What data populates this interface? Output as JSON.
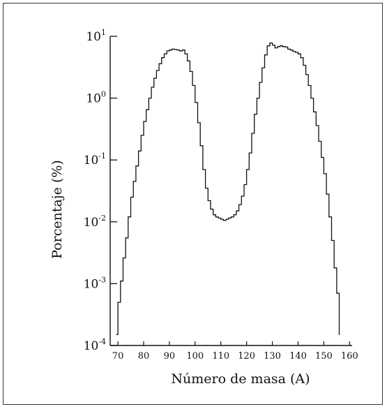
{
  "chart_data": {
    "type": "line",
    "title": "",
    "xlabel": "Número de masa (A)",
    "ylabel": "Porcentaje (%)",
    "yscale": "log",
    "xlim": [
      67,
      161
    ],
    "ylim": [
      0.0001,
      10
    ],
    "grid": false,
    "x_ticks": [
      70,
      80,
      90,
      100,
      110,
      120,
      130,
      140,
      150,
      160
    ],
    "y_ticks": [
      {
        "value": 10,
        "base": "10",
        "exp": "1"
      },
      {
        "value": 1,
        "base": "10",
        "exp": "0"
      },
      {
        "value": 0.1,
        "base": "10",
        "exp": "-1"
      },
      {
        "value": 0.01,
        "base": "10",
        "exp": "-2"
      },
      {
        "value": 0.001,
        "base": "10",
        "exp": "-3"
      },
      {
        "value": 0.0001,
        "base": "10",
        "exp": "-4"
      }
    ],
    "series": [
      {
        "color": "#111111",
        "x": [
          69.5,
          70,
          71,
          72,
          73,
          74,
          75,
          76,
          77,
          78,
          79,
          80,
          81,
          82,
          83,
          84,
          85,
          86,
          87,
          88,
          89,
          90,
          91,
          92,
          93,
          94,
          95,
          96,
          97,
          98,
          99,
          100,
          101,
          102,
          103,
          104,
          105,
          106,
          107,
          108,
          109,
          110,
          111,
          112,
          113,
          114,
          115,
          116,
          117,
          118,
          119,
          120,
          121,
          122,
          123,
          124,
          125,
          126,
          127,
          128,
          129,
          130,
          131,
          132,
          133,
          134,
          135,
          136,
          137,
          138,
          139,
          140,
          141,
          142,
          143,
          144,
          145,
          146,
          147,
          148,
          149,
          150,
          151,
          152,
          153,
          154,
          155,
          156
        ],
        "y": [
          0.00015,
          0.0005,
          0.0011,
          0.0026,
          0.0055,
          0.012,
          0.025,
          0.045,
          0.08,
          0.14,
          0.25,
          0.42,
          0.65,
          1.0,
          1.5,
          2.1,
          2.8,
          3.6,
          4.5,
          5.2,
          5.8,
          6.0,
          6.2,
          6.1,
          6.0,
          5.8,
          6.0,
          5.2,
          4.0,
          2.7,
          1.6,
          0.85,
          0.4,
          0.17,
          0.07,
          0.035,
          0.022,
          0.016,
          0.013,
          0.012,
          0.0115,
          0.011,
          0.0105,
          0.011,
          0.0115,
          0.012,
          0.013,
          0.015,
          0.019,
          0.026,
          0.04,
          0.07,
          0.13,
          0.27,
          0.55,
          1.0,
          1.8,
          3.1,
          5.0,
          7.0,
          7.8,
          7.2,
          6.5,
          6.8,
          7.0,
          6.8,
          6.7,
          6.2,
          6.0,
          5.7,
          5.5,
          5.2,
          4.5,
          3.4,
          2.4,
          1.6,
          1.0,
          0.6,
          0.36,
          0.2,
          0.11,
          0.06,
          0.028,
          0.012,
          0.005,
          0.0018,
          0.0007,
          0.00015
        ]
      }
    ]
  }
}
